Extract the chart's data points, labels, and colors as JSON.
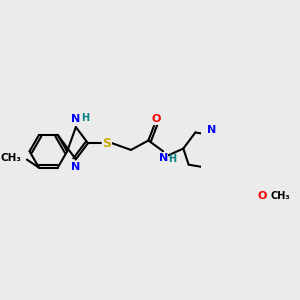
{
  "background_color": "#ebebeb",
  "bond_color": "#000000",
  "atom_colors": {
    "N": "#0000ff",
    "O": "#ff0000",
    "S": "#ccaa00",
    "H": "#008080",
    "C": "#000000"
  }
}
